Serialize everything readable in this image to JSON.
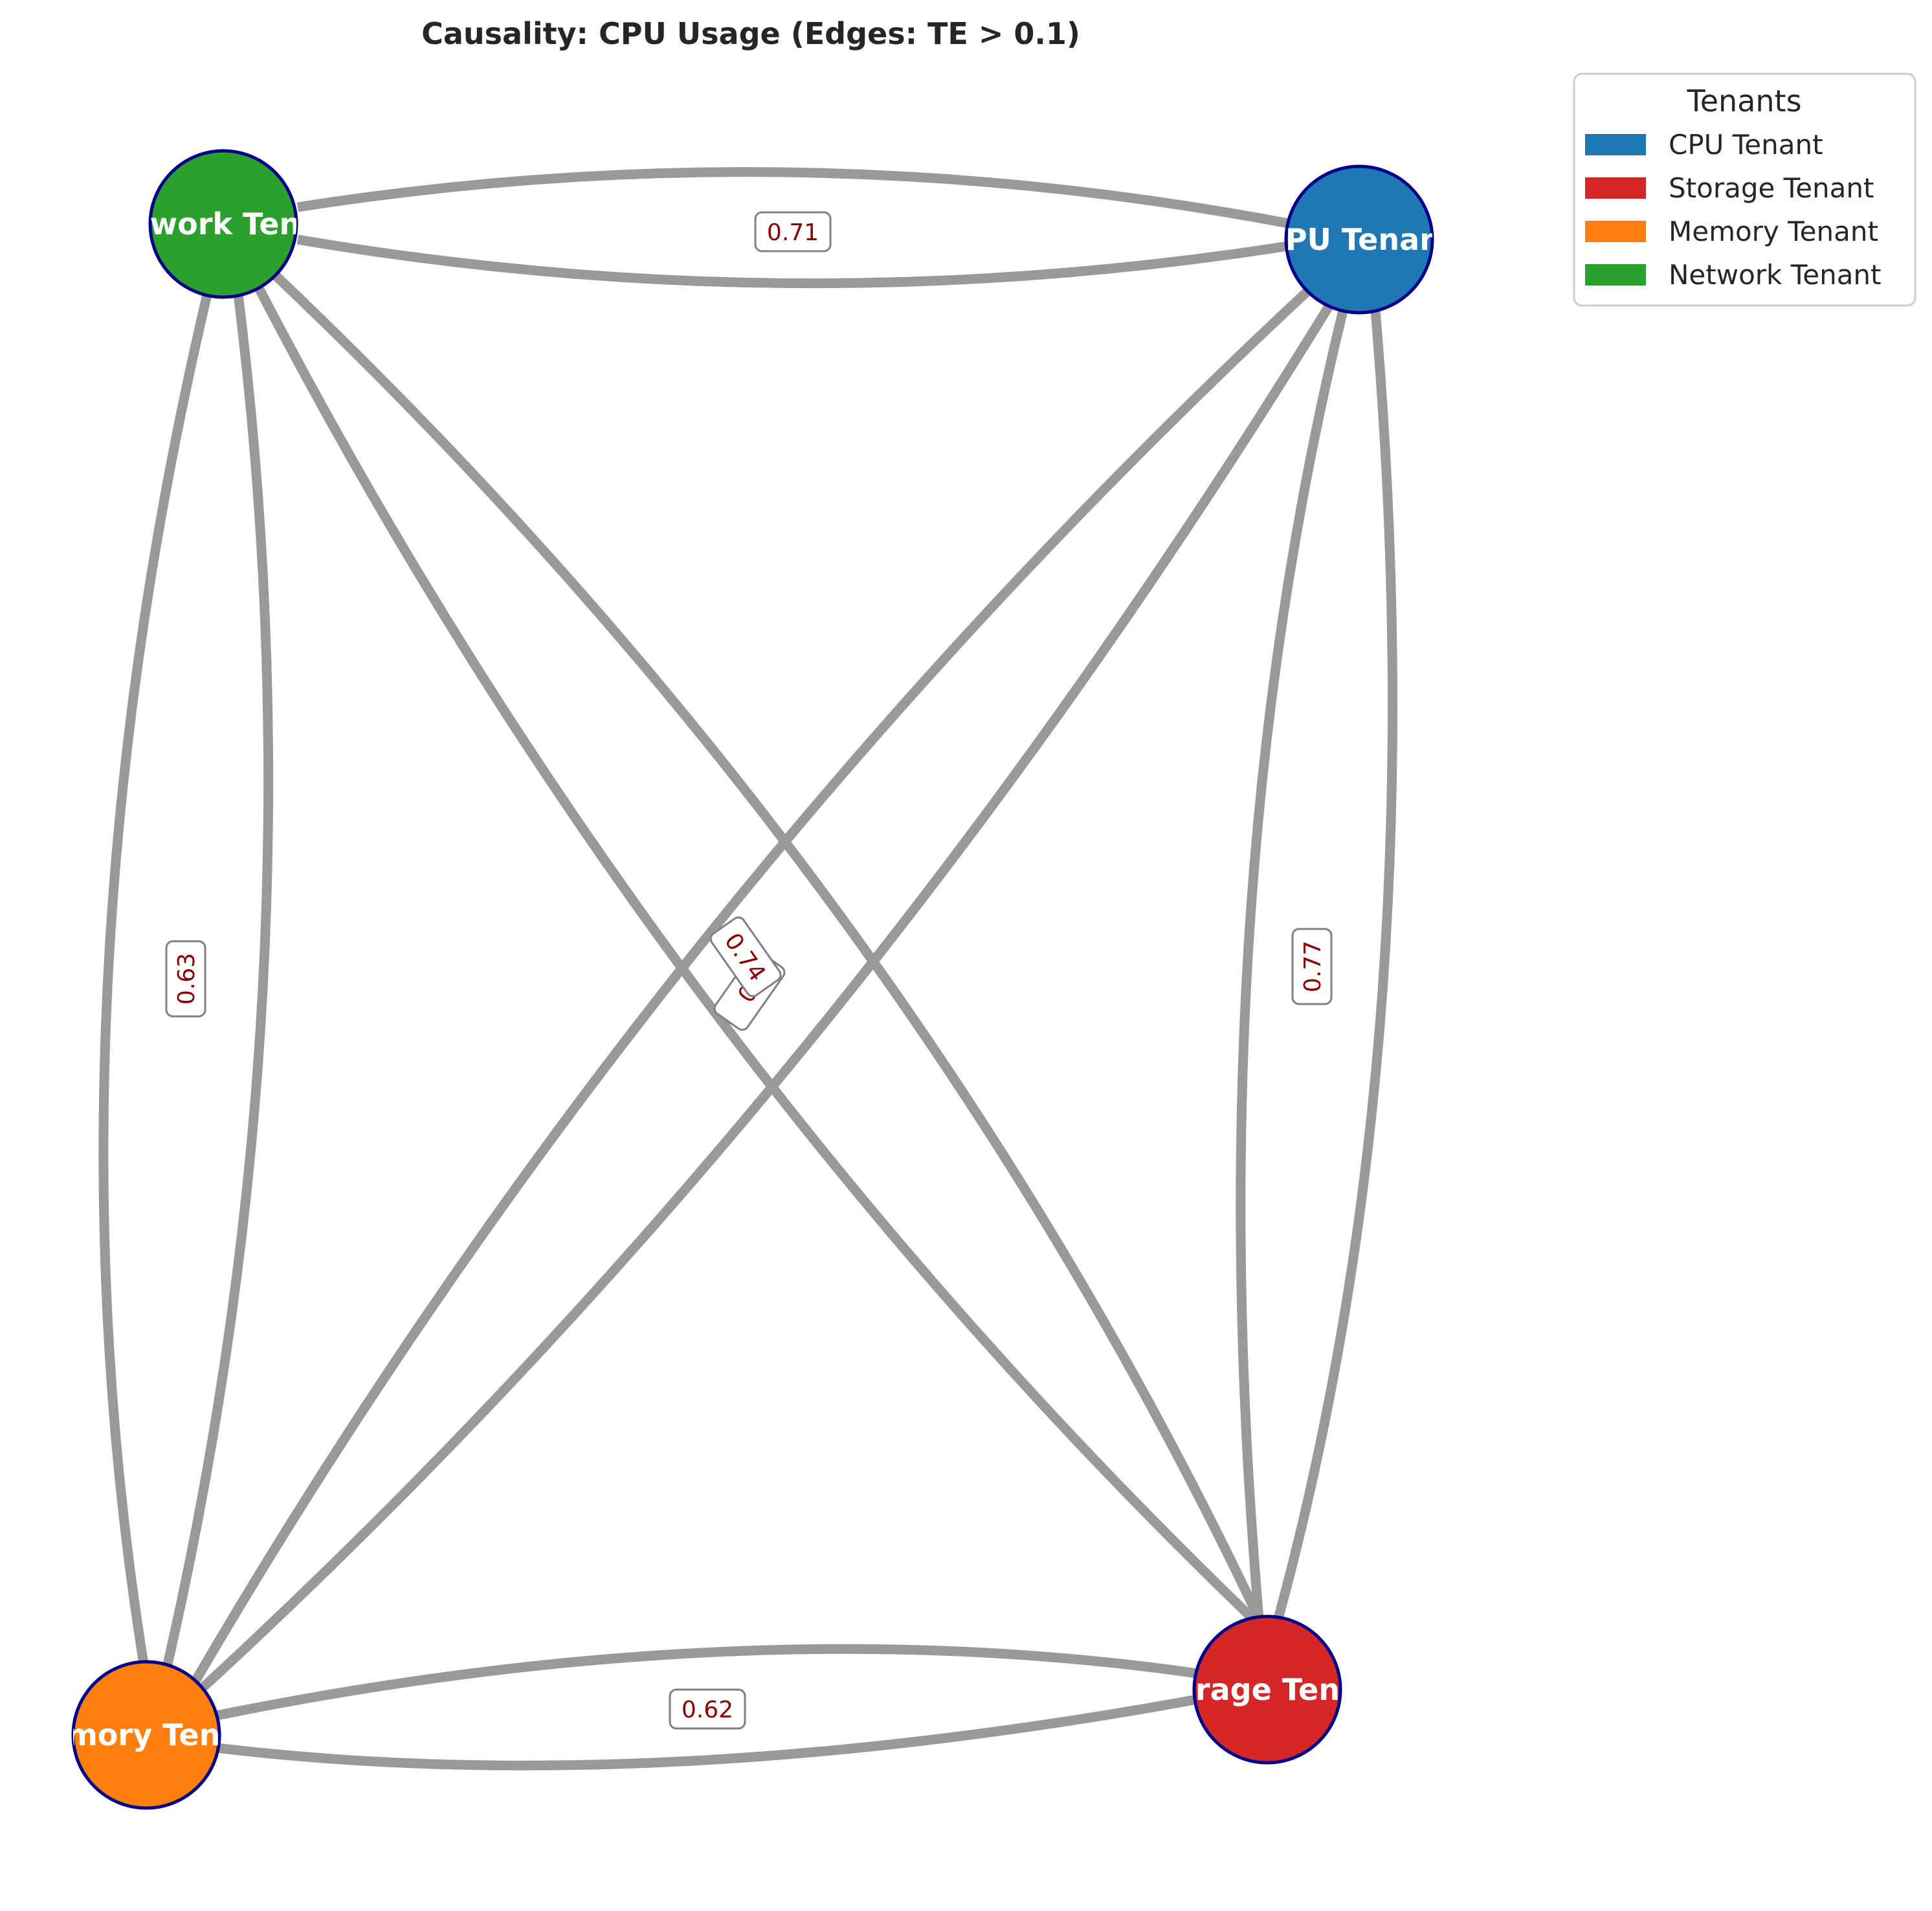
{
  "title": "Causality: CPU Usage (Edges: TE > 0.1)",
  "colors": {
    "edge": "#999999",
    "node_border": "#00008b",
    "edge_label_text": "#8b0000",
    "edge_label_border": "#808080"
  },
  "nodes": [
    {
      "id": "network",
      "label": "Network Tenant",
      "color": "#2ca02c"
    },
    {
      "id": "cpu",
      "label": "CPU Tenant",
      "color": "#1f77b4"
    },
    {
      "id": "memory",
      "label": "Memory Tenant",
      "color": "#ff7f0e"
    },
    {
      "id": "storage",
      "label": "Storage Tenant",
      "color": "#d62728"
    }
  ],
  "edges": [
    {
      "from": "network",
      "to": "cpu"
    },
    {
      "from": "cpu",
      "to": "network"
    },
    {
      "from": "network",
      "to": "memory"
    },
    {
      "from": "memory",
      "to": "network"
    },
    {
      "from": "network",
      "to": "storage"
    },
    {
      "from": "storage",
      "to": "network"
    },
    {
      "from": "cpu",
      "to": "memory"
    },
    {
      "from": "memory",
      "to": "cpu"
    },
    {
      "from": "cpu",
      "to": "storage"
    },
    {
      "from": "storage",
      "to": "cpu"
    },
    {
      "from": "memory",
      "to": "storage"
    },
    {
      "from": "storage",
      "to": "memory"
    }
  ],
  "edge_labels": [
    {
      "text": "0.71"
    },
    {
      "text": "0.63"
    },
    {
      "text": "0.77"
    },
    {
      "text": "0.62"
    },
    {
      "text": "0.74"
    },
    {
      "text": "0."
    }
  ],
  "legend": {
    "title": "Tenants",
    "items": [
      {
        "label": "CPU Tenant",
        "color": "#1f77b4"
      },
      {
        "label": "Storage Tenant",
        "color": "#d62728"
      },
      {
        "label": "Memory Tenant",
        "color": "#ff7f0e"
      },
      {
        "label": "Network Tenant",
        "color": "#2ca02c"
      }
    ]
  }
}
